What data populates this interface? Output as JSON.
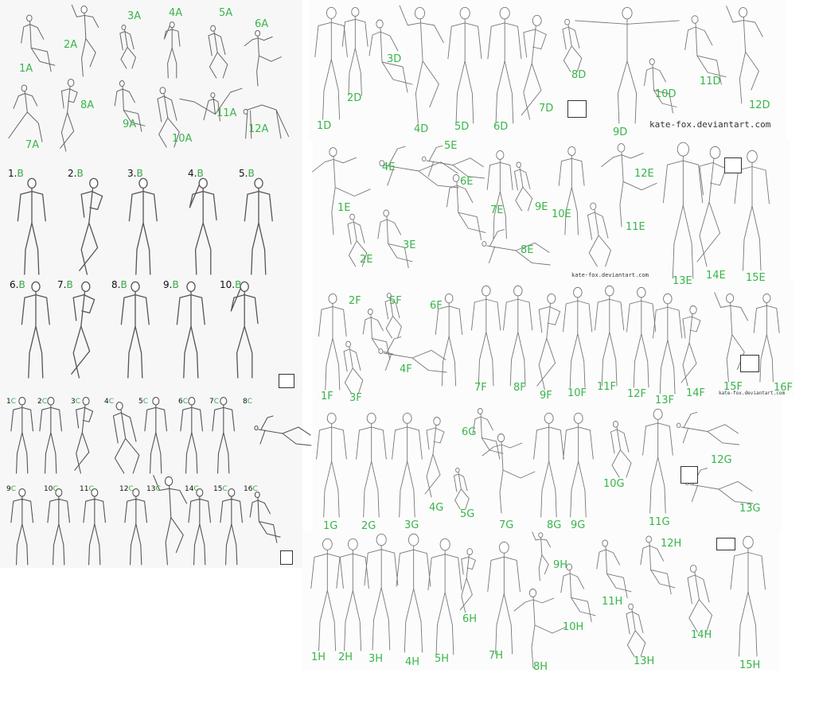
{
  "sheet_a": {
    "labels": [
      "1A",
      "2A",
      "3A",
      "4A",
      "5A",
      "6A",
      "7A",
      "8A",
      "9A",
      "10A",
      "11A",
      "12A"
    ]
  },
  "sheet_b": {
    "labels": [
      {
        "num": "1.",
        "letter": "B"
      },
      {
        "num": "2.",
        "letter": "B"
      },
      {
        "num": "3.",
        "letter": "B"
      },
      {
        "num": "4.",
        "letter": "B"
      },
      {
        "num": "5.",
        "letter": "B"
      },
      {
        "num": "6.",
        "letter": "B"
      },
      {
        "num": "7.",
        "letter": "B"
      },
      {
        "num": "8.",
        "letter": "B"
      },
      {
        "num": "9.",
        "letter": "B"
      },
      {
        "num": "10.",
        "letter": "B"
      }
    ]
  },
  "sheet_c": {
    "labels": [
      {
        "num": "1",
        "letter": "C"
      },
      {
        "num": "2",
        "letter": "C"
      },
      {
        "num": "3",
        "letter": "C"
      },
      {
        "num": "4",
        "letter": "C"
      },
      {
        "num": "5",
        "letter": "C"
      },
      {
        "num": "6",
        "letter": "C"
      },
      {
        "num": "7",
        "letter": "C"
      },
      {
        "num": "8",
        "letter": "C"
      },
      {
        "num": "9",
        "letter": "C"
      },
      {
        "num": "10",
        "letter": "C"
      },
      {
        "num": "11",
        "letter": "C"
      },
      {
        "num": "12",
        "letter": "C"
      },
      {
        "num": "13",
        "letter": "C"
      },
      {
        "num": "14",
        "letter": "C"
      },
      {
        "num": "15",
        "letter": "C"
      },
      {
        "num": "16",
        "letter": "C"
      }
    ]
  },
  "sheet_d": {
    "labels": [
      "1D",
      "2D",
      "3D",
      "4D",
      "5D",
      "6D",
      "7D",
      "8D",
      "9D",
      "10D",
      "11D",
      "12D"
    ],
    "watermark": "kate-fox.deviantart.com"
  },
  "sheet_e": {
    "labels": [
      "1E",
      "2E",
      "3E",
      "4E",
      "5E",
      "6E",
      "7E",
      "8E",
      "9E",
      "10E",
      "11E",
      "12E",
      "13E",
      "14E",
      "15E"
    ],
    "watermark": "kate-fox.deviantart.com"
  },
  "sheet_f": {
    "labels": [
      "1F",
      "2F",
      "3F",
      "4F",
      "5F",
      "6F",
      "7F",
      "8F",
      "9F",
      "10F",
      "11F",
      "12F",
      "13F",
      "14F",
      "15F",
      "16F"
    ],
    "watermark": "kate-fox.deviantart.com"
  },
  "sheet_g": {
    "labels": [
      "1G",
      "2G",
      "3G",
      "4G",
      "5G",
      "6G",
      "7G",
      "8G",
      "9G",
      "10G",
      "11G",
      "12G",
      "13G"
    ]
  },
  "sheet_h": {
    "labels": [
      "1H",
      "2H",
      "3H",
      "4H",
      "5H",
      "6H",
      "7H",
      "8H",
      "9H",
      "10H",
      "11H",
      "12H",
      "13H",
      "14H",
      "15H"
    ]
  },
  "colors": {
    "label_green": "#39b54a",
    "pencil": "#555555",
    "ink": "#333333"
  }
}
